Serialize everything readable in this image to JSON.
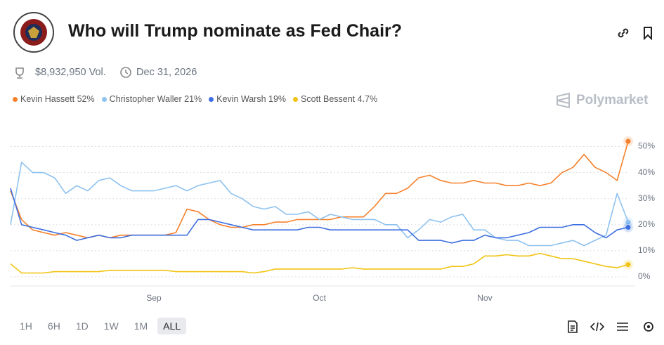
{
  "header": {
    "title": "Who will Trump nominate as Fed Chair?",
    "volume": "$8,932,950 Vol.",
    "end_date": "Dec 31, 2026",
    "brand": "Polymarket"
  },
  "controls": {
    "ranges": [
      "1H",
      "6H",
      "1D",
      "1W",
      "1M",
      "ALL"
    ]
  },
  "chart_data": {
    "type": "line",
    "categories": [
      null,
      null,
      null,
      null,
      null,
      null,
      null,
      null,
      null,
      null,
      null,
      null,
      null,
      "Sep",
      null,
      null,
      null,
      null,
      null,
      null,
      null,
      null,
      null,
      null,
      null,
      null,
      null,
      null,
      "Oct",
      null,
      null,
      null,
      null,
      null,
      null,
      null,
      null,
      null,
      null,
      null,
      null,
      null,
      null,
      "Nov",
      null,
      null,
      null,
      null,
      null,
      null,
      null,
      null,
      null,
      null,
      null,
      null,
      null
    ],
    "series": [
      {
        "name": "Kevin Hassett 52%",
        "color": "#f6812d",
        "values": [
          33,
          22,
          18,
          17,
          16,
          17,
          16,
          15,
          16,
          15,
          16,
          16,
          16,
          16,
          16,
          17,
          26,
          25,
          22,
          20,
          19,
          19,
          20,
          20,
          21,
          21,
          22,
          22,
          22,
          22,
          23,
          23,
          23,
          27,
          32,
          32,
          34,
          38,
          39,
          37,
          36,
          36,
          37,
          36,
          36,
          35,
          35,
          36,
          35,
          36,
          40,
          42,
          47,
          42,
          40,
          37,
          52
        ]
      },
      {
        "name": "Christopher Waller 21%",
        "color": "#8ec2f0",
        "values": [
          20,
          44,
          40,
          40,
          38,
          32,
          35,
          33,
          37,
          38,
          35,
          33,
          33,
          33,
          34,
          35,
          33,
          35,
          36,
          37,
          32,
          30,
          27,
          26,
          27,
          24,
          24,
          25,
          22,
          24,
          23,
          22,
          22,
          22,
          20,
          20,
          15,
          18,
          22,
          21,
          23,
          24,
          18,
          18,
          15,
          14,
          14,
          12,
          12,
          12,
          13,
          14,
          12,
          14,
          16,
          32,
          21
        ]
      },
      {
        "name": "Kevin Warsh 19%",
        "color": "#3d6fe0",
        "values": [
          34,
          20,
          19,
          18,
          17,
          16,
          14,
          15,
          16,
          15,
          15,
          16,
          16,
          16,
          16,
          16,
          16,
          22,
          22,
          21,
          20,
          19,
          18,
          18,
          18,
          18,
          18,
          19,
          19,
          18,
          18,
          18,
          18,
          18,
          18,
          18,
          18,
          14,
          14,
          14,
          13,
          14,
          14,
          16,
          15,
          15,
          16,
          17,
          19,
          19,
          19,
          20,
          20,
          17,
          15,
          18,
          19
        ]
      },
      {
        "name": "Scott Bessent 4.7%",
        "color": "#f2c313",
        "values": [
          5,
          1.5,
          1.5,
          1.5,
          2,
          2,
          2,
          2,
          2,
          2.5,
          2.5,
          2.5,
          2.5,
          2.5,
          2.5,
          2,
          2,
          2,
          2,
          2,
          2,
          2,
          1.5,
          2,
          3,
          3,
          3,
          3,
          3,
          3,
          3,
          3.5,
          3,
          3,
          3,
          3,
          3,
          3,
          3,
          3,
          4,
          4,
          5,
          8,
          8,
          8.5,
          8,
          8,
          9,
          8,
          7,
          7,
          6,
          5,
          4,
          3.5,
          4.7
        ]
      }
    ],
    "ylim": [
      -3.5,
      55
    ],
    "yticks": [
      {
        "value": 0,
        "label": "0%"
      },
      {
        "value": 10,
        "label": "10%"
      },
      {
        "value": 20,
        "label": "20%"
      },
      {
        "value": 30,
        "label": "30%"
      },
      {
        "value": 40,
        "label": "40%"
      },
      {
        "value": 50,
        "label": "50%"
      }
    ],
    "grid": true
  }
}
